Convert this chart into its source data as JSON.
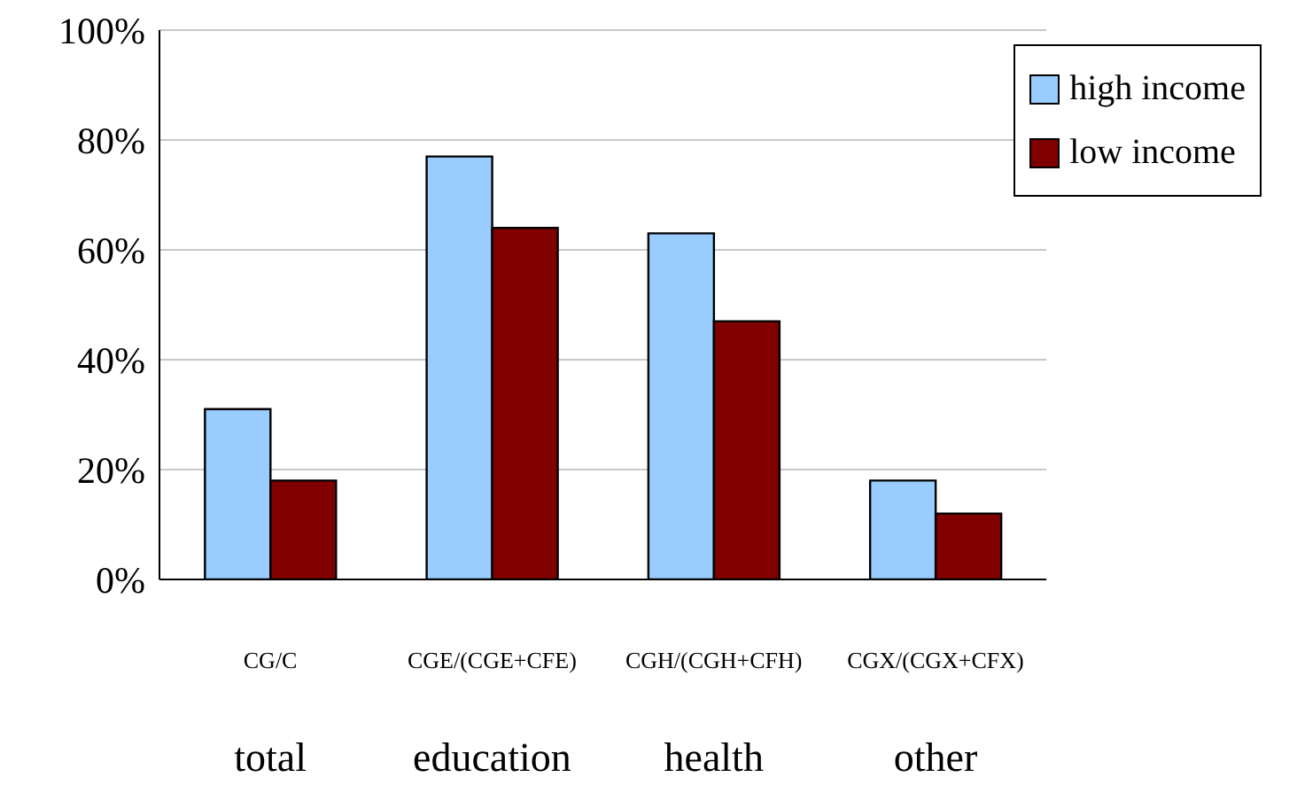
{
  "chart_data": {
    "type": "bar",
    "categories": [
      "CG/C",
      "CGE/(CGE+CFE)",
      "CGH/(CGH+CFH)",
      "CGX/(CGX+CFX)"
    ],
    "series": [
      {
        "name": "high income",
        "color": "#99ccff",
        "values": [
          31,
          77,
          63,
          18
        ]
      },
      {
        "name": "low income",
        "color": "#800000",
        "values": [
          18,
          64,
          47,
          12
        ]
      }
    ],
    "ylim": [
      0,
      100
    ],
    "yticks": [
      {
        "value": 0,
        "label": "0%"
      },
      {
        "value": 20,
        "label": "20%"
      },
      {
        "value": 40,
        "label": "40%"
      },
      {
        "value": 60,
        "label": "60%"
      },
      {
        "value": 80,
        "label": "80%"
      },
      {
        "value": 100,
        "label": "100%"
      }
    ],
    "grid": "y",
    "legend": "top right",
    "annotations": [
      "total",
      "education",
      "health",
      "other"
    ]
  }
}
